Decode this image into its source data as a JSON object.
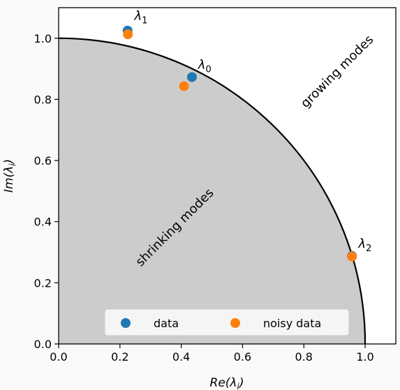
{
  "chart_data": {
    "type": "scatter",
    "xlabel": "Re(λ_i)",
    "ylabel": "Im(λ_i)",
    "xlim": [
      0.0,
      1.1
    ],
    "ylim": [
      0.0,
      1.1
    ],
    "xticks": [
      "0.0",
      "0.2",
      "0.4",
      "0.6",
      "0.8",
      "1.0"
    ],
    "yticks": [
      "0.0",
      "0.2",
      "0.4",
      "0.6",
      "0.8",
      "1.0"
    ],
    "grid": false,
    "legend_position": "bottom-center",
    "unit_circle": {
      "radius": 1.0,
      "fill": "#cccccc",
      "stroke": "#000000"
    },
    "region_labels": [
      {
        "text": "shrinking modes",
        "x": 0.38,
        "y": 0.38,
        "rotation": -45
      },
      {
        "text": "growing modes",
        "x": 0.91,
        "y": 0.89,
        "rotation": -45
      }
    ],
    "series": [
      {
        "name": "data",
        "color": "#1f77b4",
        "points": [
          {
            "x": 0.225,
            "y": 1.025
          },
          {
            "x": 0.435,
            "y": 0.873
          },
          {
            "x": 0.957,
            "y": 0.288
          }
        ]
      },
      {
        "name": "noisy data",
        "color": "#ff7f0e",
        "points": [
          {
            "x": 0.226,
            "y": 1.013
          },
          {
            "x": 0.409,
            "y": 0.843
          },
          {
            "x": 0.957,
            "y": 0.286
          }
        ]
      }
    ],
    "point_labels": [
      {
        "sym": "λ",
        "sub": "1",
        "x": 0.247,
        "y": 1.06
      },
      {
        "sym": "λ",
        "sub": "0",
        "x": 0.455,
        "y": 0.9
      },
      {
        "sym": "λ",
        "sub": "2",
        "x": 0.978,
        "y": 0.315
      }
    ]
  }
}
